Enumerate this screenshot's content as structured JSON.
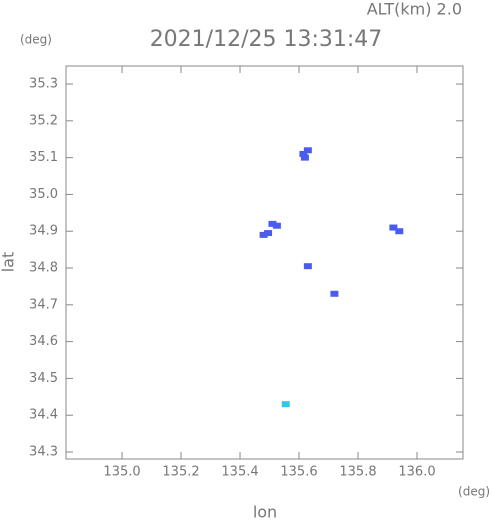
{
  "chart_data": {
    "type": "scatter",
    "title": "2021/12/25 13:31:47",
    "annotation": "ALT(km) 2.0",
    "x_label": "lon",
    "y_label": "lat",
    "x_unit": "(deg)",
    "y_unit": "(deg)",
    "xlim": [
      134.81,
      136.156
    ],
    "ylim": [
      34.281,
      35.349
    ],
    "xticks": [
      {
        "value": 135.0,
        "label": "135.0"
      },
      135.2,
      135.4,
      135.6,
      135.8,
      {
        "value": 136.0,
        "label": "136.0"
      }
    ],
    "yticks": [
      34.3,
      34.4,
      34.5,
      34.6,
      34.7,
      34.8,
      34.9,
      {
        "value": 35.0,
        "label": "35.0"
      },
      35.1,
      35.2,
      35.3
    ],
    "series": [
      {
        "color": "#4a5cf0",
        "x": [
          135.62,
          135.615,
          135.63,
          135.51,
          135.525,
          135.48,
          135.495,
          135.94,
          135.92,
          135.72,
          135.63
        ],
        "values": [
          35.1,
          35.11,
          35.12,
          34.92,
          34.915,
          34.89,
          34.895,
          34.9,
          34.91,
          34.73,
          34.805
        ]
      },
      {
        "color": "#30c8e8",
        "x": [
          135.555
        ],
        "values": [
          34.43
        ]
      }
    ]
  }
}
